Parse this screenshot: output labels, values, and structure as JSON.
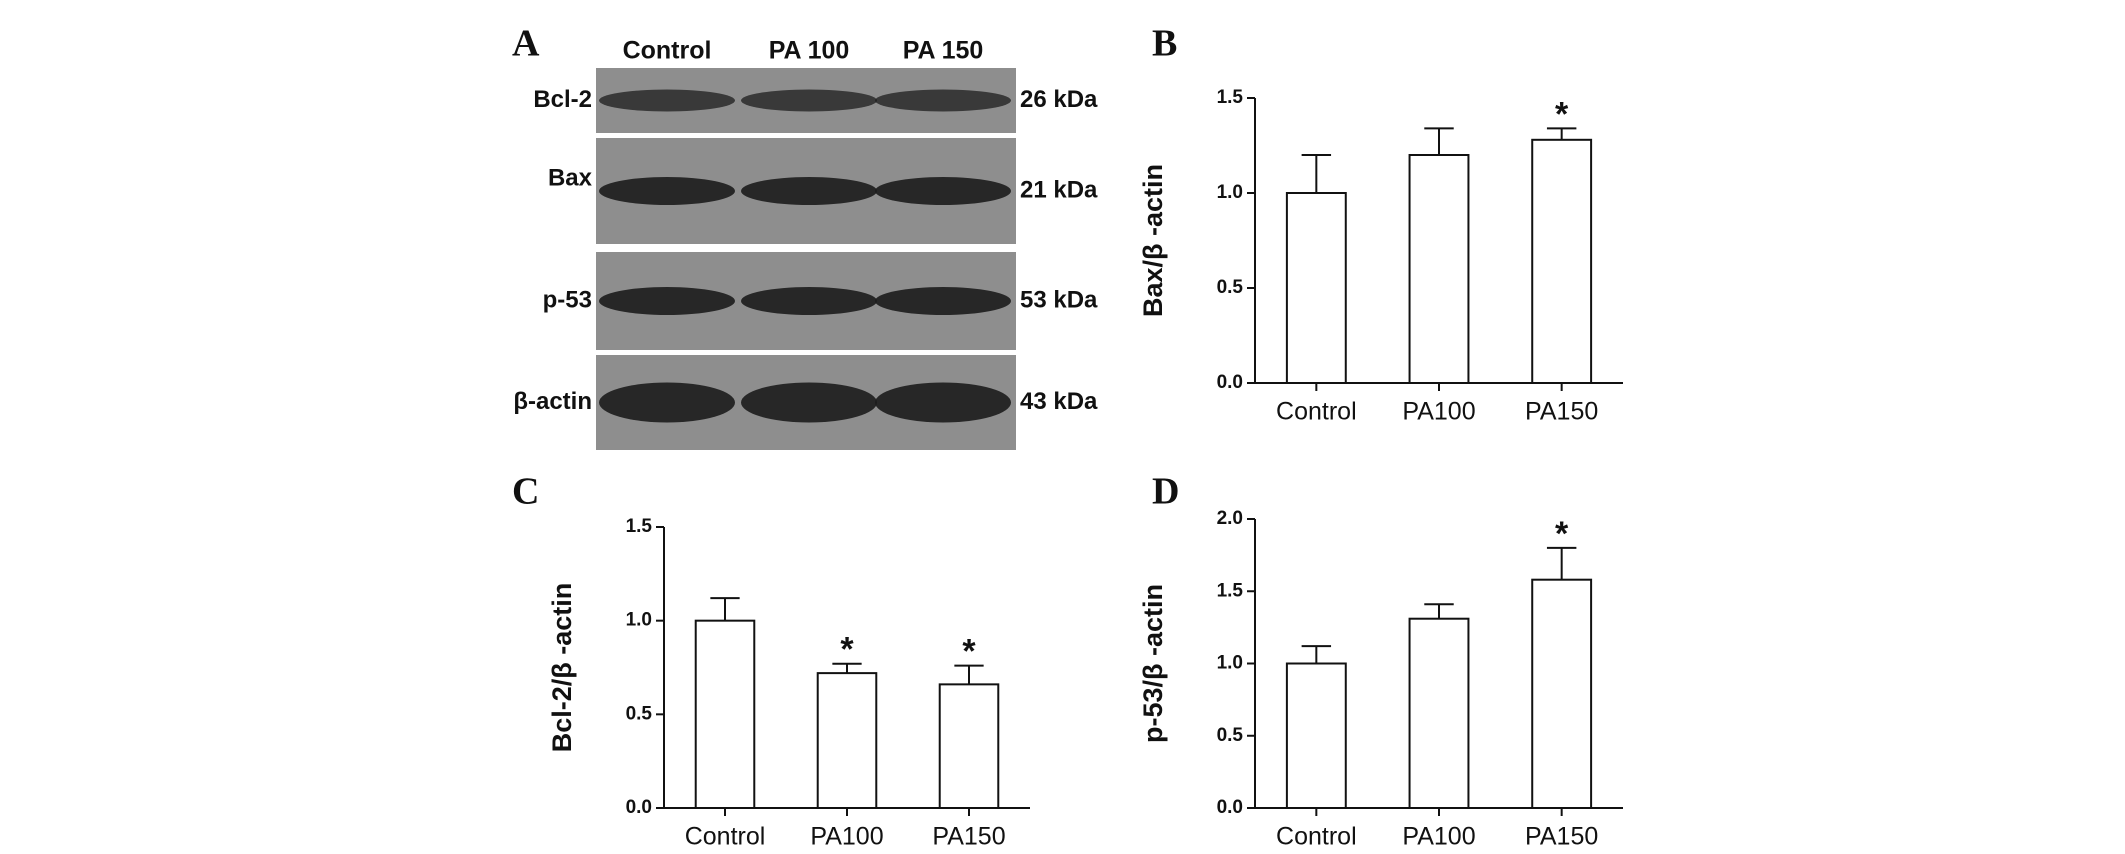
{
  "panel_labels": [
    "A",
    "B",
    "C",
    "D"
  ],
  "blot": {
    "columns": [
      "Control",
      "PA 100",
      "PA 150"
    ],
    "rows": [
      {
        "protein": "Bcl-2",
        "size": "26 kDa"
      },
      {
        "protein": "Bax",
        "size": "21 kDa"
      },
      {
        "protein": "p-53",
        "size": "53 kDa"
      },
      {
        "protein": "β-actin",
        "size": "43 kDa"
      }
    ]
  },
  "chart_data": [
    {
      "type": "bar",
      "ylabel": "Bax/β -actin",
      "categories": [
        "Control",
        "PA100",
        "PA150"
      ],
      "values": [
        1.0,
        1.2,
        1.28
      ],
      "errors": [
        0.2,
        0.14,
        0.06
      ],
      "significance": [
        null,
        null,
        "*"
      ],
      "color": "#ffffff",
      "ylim": [
        0,
        1.5
      ],
      "yticks": [
        {
          "value": 0,
          "label": "0.0"
        },
        {
          "value": 0.5,
          "label": "0.5"
        },
        {
          "value": 1,
          "label": "1.0"
        },
        {
          "value": 1.5,
          "label": "1.5"
        }
      ]
    },
    {
      "type": "bar",
      "ylabel": "Bcl-2/β -actin",
      "categories": [
        "Control",
        "PA100",
        "PA150"
      ],
      "values": [
        1.0,
        0.72,
        0.66
      ],
      "errors": [
        0.12,
        0.05,
        0.1
      ],
      "significance": [
        null,
        "*",
        "*"
      ],
      "color": "#ffffff",
      "ylim": [
        0,
        1.5
      ],
      "yticks": [
        {
          "value": 0,
          "label": "0.0"
        },
        {
          "value": 0.5,
          "label": "0.5"
        },
        {
          "value": 1,
          "label": "1.0"
        },
        {
          "value": 1.5,
          "label": "1.5"
        }
      ]
    },
    {
      "type": "bar",
      "ylabel": "p-53/β -actin",
      "categories": [
        "Control",
        "PA100",
        "PA150"
      ],
      "values": [
        1.0,
        1.31,
        1.58
      ],
      "errors": [
        0.12,
        0.1,
        0.22
      ],
      "significance": [
        null,
        null,
        "*"
      ],
      "color": "#ffffff",
      "ylim": [
        0,
        2
      ],
      "yticks": [
        {
          "value": 0,
          "label": "0.0"
        },
        {
          "value": 0.5,
          "label": "0.5"
        },
        {
          "value": 1,
          "label": "1.0"
        },
        {
          "value": 1.5,
          "label": "1.5"
        },
        {
          "value": 2,
          "label": "2.0"
        }
      ]
    }
  ]
}
